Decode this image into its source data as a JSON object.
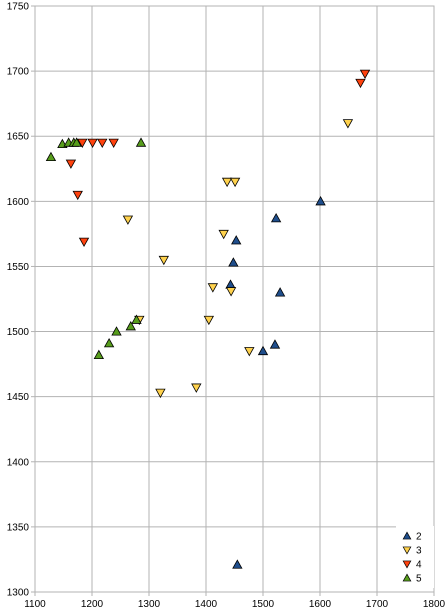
{
  "chart_data": {
    "type": "scatter",
    "title": "",
    "xlabel": "",
    "ylabel": "",
    "xlim": [
      1100,
      1800
    ],
    "ylim": [
      1300,
      1750
    ],
    "x_ticks": [
      1100,
      1200,
      1300,
      1400,
      1500,
      1600,
      1700,
      1800
    ],
    "y_ticks": [
      1300,
      1350,
      1400,
      1450,
      1500,
      1550,
      1600,
      1650,
      1700,
      1750
    ],
    "grid": true,
    "legend_position": "bottom-right",
    "series": [
      {
        "name": "2",
        "marker": "triangle-up",
        "color": "#1f4e8c",
        "points": [
          [
            1523,
            1587
          ],
          [
            1601,
            1600
          ],
          [
            1453,
            1570
          ],
          [
            1448,
            1553
          ],
          [
            1443,
            1536
          ],
          [
            1530,
            1530
          ],
          [
            1500,
            1485
          ],
          [
            1521,
            1490
          ],
          [
            1455,
            1321
          ]
        ]
      },
      {
        "name": "3",
        "marker": "triangle-down",
        "color": "#ffd24d",
        "points": [
          [
            1437,
            1615
          ],
          [
            1451,
            1615
          ],
          [
            1263,
            1586
          ],
          [
            1431,
            1575
          ],
          [
            1326,
            1555
          ],
          [
            1412,
            1534
          ],
          [
            1444,
            1531
          ],
          [
            1283,
            1509
          ],
          [
            1405,
            1509
          ],
          [
            1476,
            1485
          ],
          [
            1383,
            1457
          ],
          [
            1320,
            1453
          ],
          [
            1649,
            1660
          ]
        ]
      },
      {
        "name": "4",
        "marker": "triangle-down",
        "color": "#ff420e",
        "points": [
          [
            1679,
            1698
          ],
          [
            1671,
            1691
          ],
          [
            1183,
            1645
          ],
          [
            1201,
            1645
          ],
          [
            1218,
            1645
          ],
          [
            1238,
            1645
          ],
          [
            1163,
            1629
          ],
          [
            1175,
            1605
          ],
          [
            1186,
            1569
          ]
        ]
      },
      {
        "name": "5",
        "marker": "triangle-up",
        "color": "#579d1c",
        "points": [
          [
            1128,
            1634
          ],
          [
            1148,
            1644
          ],
          [
            1159,
            1645
          ],
          [
            1168,
            1645
          ],
          [
            1173,
            1645
          ],
          [
            1286,
            1645
          ],
          [
            1278,
            1509
          ],
          [
            1268,
            1504
          ],
          [
            1243,
            1500
          ],
          [
            1230,
            1491
          ],
          [
            1212,
            1482
          ]
        ]
      }
    ]
  }
}
